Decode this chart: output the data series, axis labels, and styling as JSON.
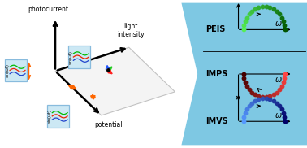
{
  "figure_bg": "#ffffff",
  "right_bg": "#7ec8e3",
  "axis_labels": [
    "PEIS",
    "IMPS",
    "IMVS"
  ],
  "omega": "ω",
  "peis_color_start": "#55ee55",
  "peis_color_end": "#005500",
  "imps_color_start": "#ff4444",
  "imps_color_end": "#440000",
  "imvs_color_start": "#5599ff",
  "imvs_color_end": "#000066",
  "text_photocurrent": "photocurrent",
  "text_light_intensity": "light\nintensity",
  "text_potential": "potential",
  "sin_text": "sin(ωt)",
  "box_fill": "#cce8f4",
  "box_edge": "#88bbdd",
  "orange": "#ff6600",
  "green_arrow": "#22cc22",
  "red_arrow": "#ff2222",
  "blue_arrow": "#2255ff"
}
